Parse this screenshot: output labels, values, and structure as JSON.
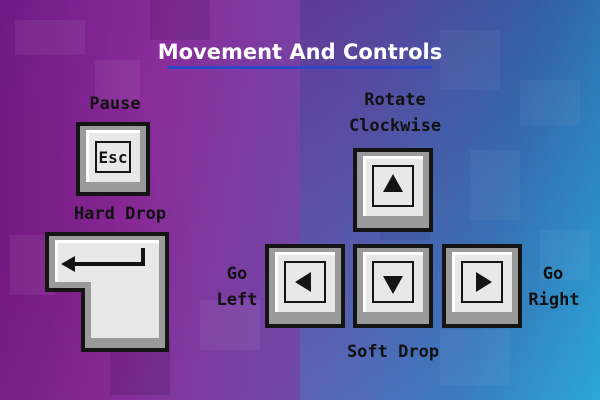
{
  "title": "Movement And Controls",
  "controls": {
    "pause": {
      "label": "Pause",
      "key": "Esc"
    },
    "hard_drop": {
      "label": "Hard Drop"
    },
    "rotate": {
      "label_line1": "Rotate",
      "label_line2": "Clockwise"
    },
    "left": {
      "label_line1": "Go",
      "label_line2": "Left"
    },
    "soft_drop": {
      "label": "Soft Drop"
    },
    "right": {
      "label_line1": "Go",
      "label_line2": "Right"
    }
  },
  "colors": {
    "key_outer": "#141414",
    "key_bevel": "#9a9a9a",
    "key_face": "#e8e8e8",
    "key_highlight": "#ffffff",
    "title_underline": "#2b46c8"
  }
}
